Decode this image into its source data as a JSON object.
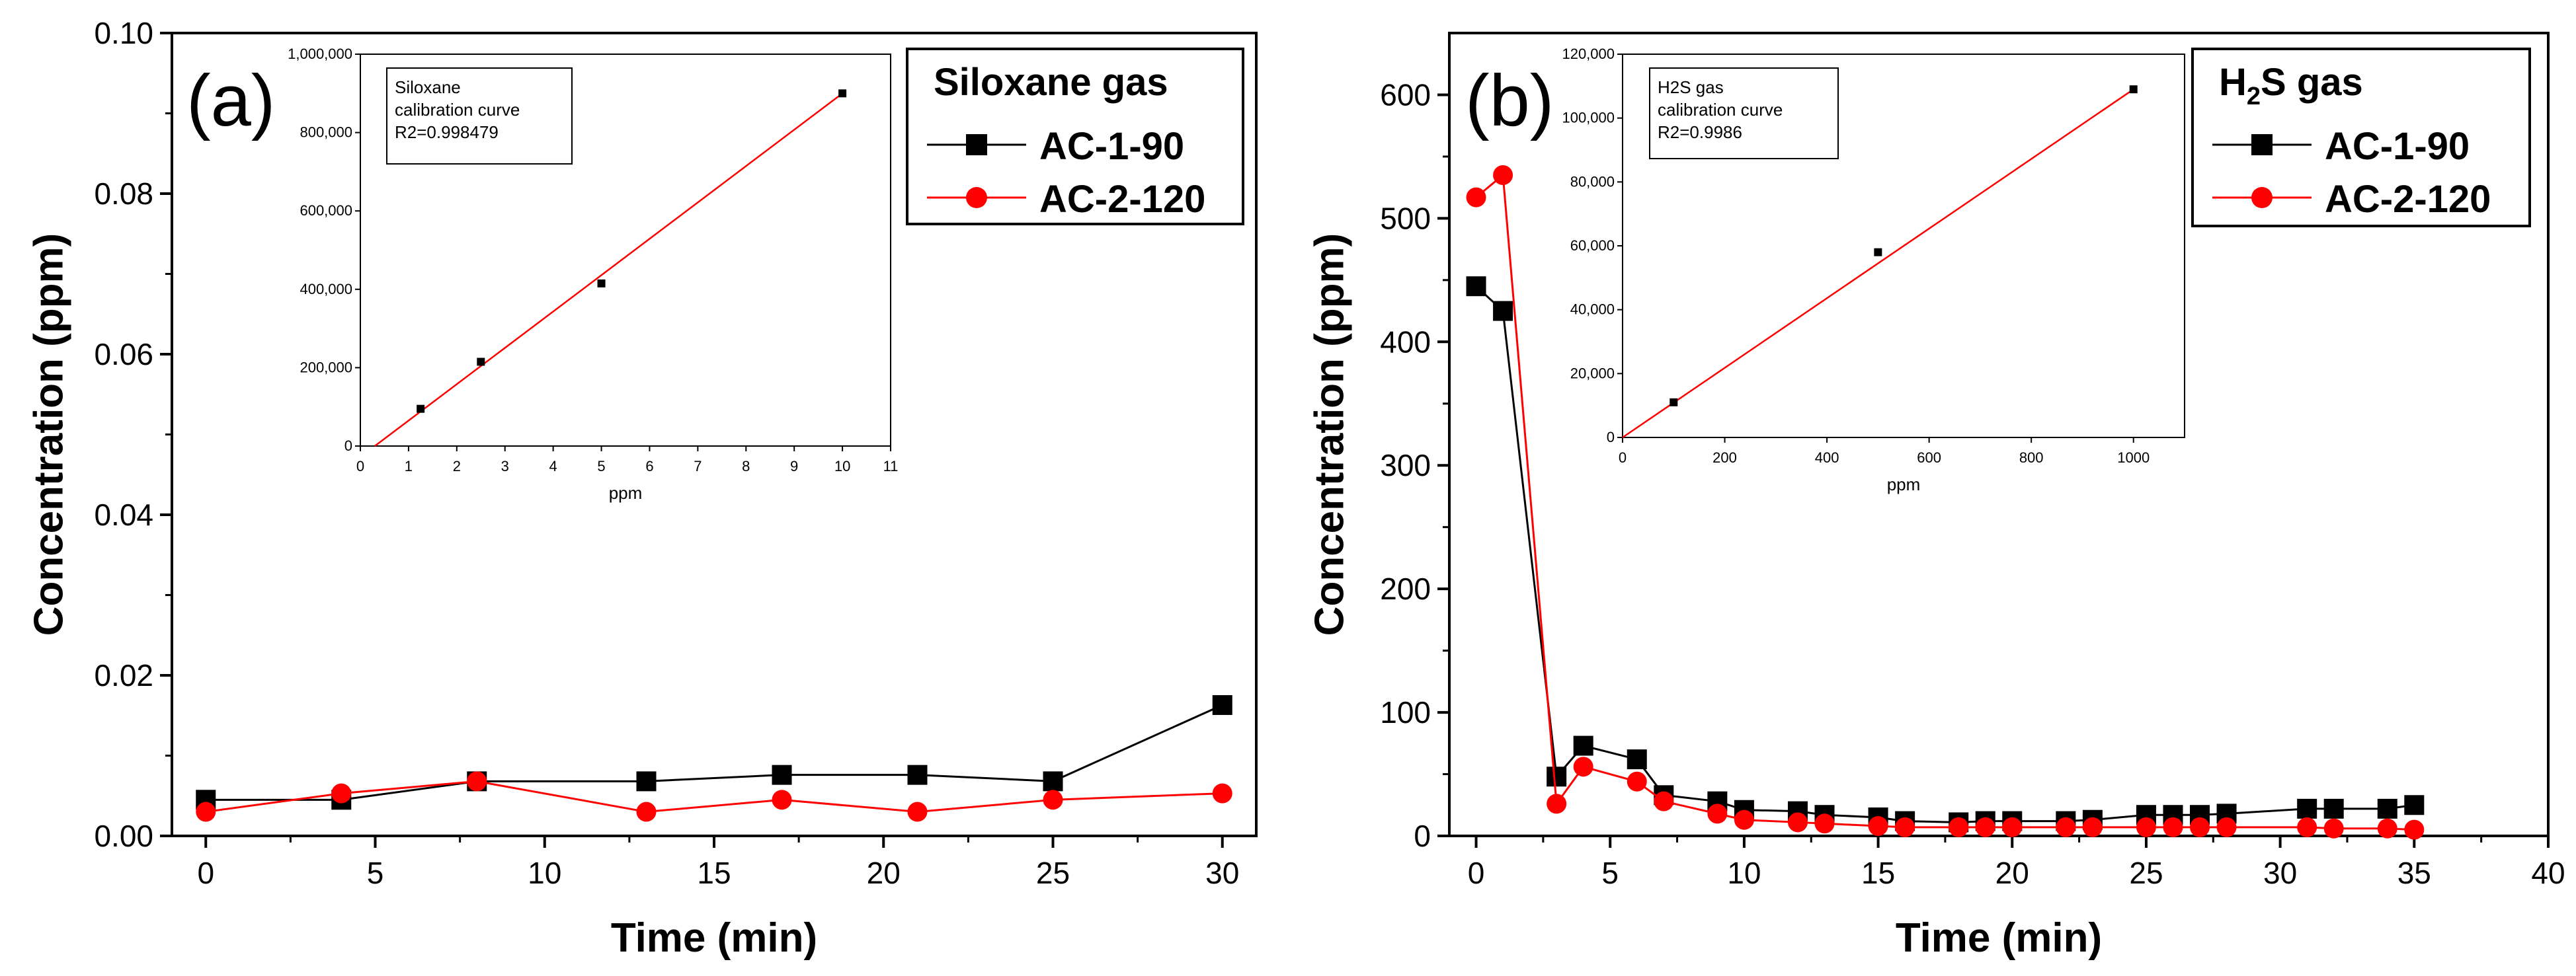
{
  "chart_data": [
    {
      "panel_label": "(a)",
      "type": "line",
      "xlabel": "Time (min)",
      "ylabel": "Concentration (ppm)",
      "xlim": [
        -1,
        31
      ],
      "ylim": [
        0,
        0.1
      ],
      "xticks": [
        0,
        5,
        10,
        15,
        20,
        25,
        30
      ],
      "xtick_labels": [
        "0",
        "5",
        "10",
        "15",
        "20",
        "25",
        "30"
      ],
      "yticks": [
        0,
        0.02,
        0.04,
        0.06,
        0.08,
        0.1
      ],
      "ytick_labels": [
        "0.00",
        "0.02",
        "0.04",
        "0.06",
        "0.08",
        "0.10"
      ],
      "legend_title": "Siloxane gas",
      "legend_title_parts": [
        {
          "t": "Siloxane gas",
          "sub": false
        }
      ],
      "legend_position": "top-right",
      "series": [
        {
          "name": "AC-1-90",
          "color": "#000000",
          "marker": "square",
          "x": [
            0,
            4,
            8,
            13,
            17,
            21,
            25,
            30
          ],
          "y": [
            0.0045,
            0.0045,
            0.0068,
            0.0068,
            0.0076,
            0.0076,
            0.0068,
            0.0163
          ]
        },
        {
          "name": "AC-2-120",
          "color": "#ff0000",
          "marker": "circle",
          "x": [
            0,
            4,
            8,
            13,
            17,
            21,
            25,
            30
          ],
          "y": [
            0.003,
            0.0053,
            0.0068,
            0.003,
            0.0045,
            0.003,
            0.0045,
            0.0053
          ]
        }
      ],
      "inset": {
        "type": "scatter",
        "xlabel": "ppm",
        "ylabel": "",
        "xlim": [
          0,
          11
        ],
        "ylim": [
          0,
          1000000
        ],
        "xticks": [
          0,
          1,
          2,
          3,
          4,
          5,
          6,
          7,
          8,
          9,
          10,
          11
        ],
        "xtick_labels": [
          "0",
          "1",
          "2",
          "3",
          "4",
          "5",
          "6",
          "7",
          "8",
          "9",
          "10",
          "11"
        ],
        "yticks": [
          0,
          200000,
          400000,
          600000,
          800000,
          1000000
        ],
        "ytick_labels": [
          "0",
          "200,000",
          "400,000",
          "600,000",
          "800,000",
          "1,000,000"
        ],
        "annotation": [
          "Siloxane",
          "calibration curve",
          "R2=0.998479"
        ],
        "points": {
          "x": [
            1.25,
            2.5,
            5,
            10
          ],
          "y": [
            95000,
            215000,
            415000,
            900000
          ]
        },
        "fit_line": {
          "x": [
            0.3,
            10
          ],
          "y": [
            0,
            900000
          ],
          "color": "#ff0000"
        }
      }
    },
    {
      "panel_label": "(b)",
      "type": "line",
      "xlabel": "Time (min)",
      "ylabel": "Concentration (ppm)",
      "xlim": [
        -1,
        40
      ],
      "ylim": [
        0,
        650
      ],
      "xticks": [
        0,
        5,
        10,
        15,
        20,
        25,
        30,
        35,
        40
      ],
      "xtick_labels": [
        "0",
        "5",
        "10",
        "15",
        "20",
        "25",
        "30",
        "35",
        "40"
      ],
      "yticks": [
        0,
        100,
        200,
        300,
        400,
        500,
        600
      ],
      "ytick_labels": [
        "0",
        "100",
        "200",
        "300",
        "400",
        "500",
        "600"
      ],
      "legend_title": "H2S gas",
      "legend_title_parts": [
        {
          "t": "H",
          "sub": false
        },
        {
          "t": "2",
          "sub": true
        },
        {
          "t": "S gas",
          "sub": false
        }
      ],
      "legend_position": "top-right",
      "series": [
        {
          "name": "AC-1-90",
          "color": "#000000",
          "marker": "square",
          "x": [
            0,
            1,
            3,
            4,
            6,
            7,
            9,
            10,
            12,
            13,
            15,
            16,
            18,
            19,
            20,
            22,
            23,
            25,
            26,
            27,
            28,
            31,
            32,
            34,
            35
          ],
          "y": [
            445,
            425,
            48,
            73,
            62,
            33,
            28,
            21,
            20,
            17,
            15,
            12,
            11,
            12,
            12,
            12,
            13,
            17,
            17,
            17,
            18,
            22,
            22,
            22,
            25
          ]
        },
        {
          "name": "AC-2-120",
          "color": "#ff0000",
          "marker": "circle",
          "x": [
            0,
            1,
            3,
            4,
            6,
            7,
            9,
            10,
            12,
            13,
            15,
            16,
            18,
            19,
            20,
            22,
            23,
            25,
            26,
            27,
            28,
            31,
            32,
            34,
            35
          ],
          "y": [
            517,
            535,
            26,
            56,
            44,
            28,
            18,
            13,
            11,
            10,
            8,
            7,
            7,
            7,
            7,
            7,
            7,
            7,
            7,
            7,
            7,
            7,
            6,
            6,
            5
          ]
        }
      ],
      "inset": {
        "type": "scatter",
        "xlabel": "ppm",
        "ylabel": "",
        "xlim": [
          0,
          1100
        ],
        "ylim": [
          0,
          120000
        ],
        "xticks": [
          0,
          200,
          400,
          600,
          800,
          1000
        ],
        "xtick_labels": [
          "0",
          "200",
          "400",
          "600",
          "800",
          "1000"
        ],
        "yticks": [
          0,
          20000,
          40000,
          60000,
          80000,
          100000,
          120000
        ],
        "ytick_labels": [
          "0",
          "20,000",
          "40,000",
          "60,000",
          "80,000",
          "100,000",
          "120,000"
        ],
        "annotation": [
          "H2S gas",
          "calibration curve",
          "R2=0.9986"
        ],
        "points": {
          "x": [
            100,
            500,
            1000
          ],
          "y": [
            11000,
            58000,
            109000
          ]
        },
        "fit_line": {
          "x": [
            0,
            1000
          ],
          "y": [
            0,
            109000
          ],
          "color": "#ff0000"
        }
      }
    }
  ]
}
